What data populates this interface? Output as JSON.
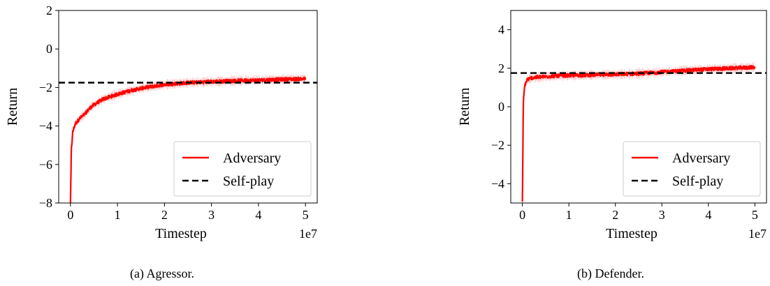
{
  "chart_data": [
    {
      "type": "line",
      "caption": "(a) Agressor.",
      "xlabel": "Timestep",
      "ylabel": "Return",
      "x_offset_label": "1e7",
      "xlim": [
        -0.25,
        5.25
      ],
      "ylim": [
        -8,
        2
      ],
      "xticks": [
        0,
        1,
        2,
        3,
        4,
        5
      ],
      "xtick_labels": [
        "0",
        "1",
        "2",
        "3",
        "4",
        "5"
      ],
      "yticks": [
        -8,
        -6,
        -4,
        -2,
        0,
        2
      ],
      "ytick_labels": [
        "−8",
        "−6",
        "−4",
        "−2",
        "0",
        "2"
      ],
      "legend_position": "lower-right",
      "series": [
        {
          "name": "Adversary",
          "color": "#ff0000",
          "style": "solid",
          "x": [
            0,
            0.02,
            0.05,
            0.1,
            0.2,
            0.3,
            0.4,
            0.5,
            0.7,
            1.0,
            1.3,
            1.6,
            2.0,
            2.5,
            3.0,
            3.5,
            4.0,
            4.5,
            5.0
          ],
          "y": [
            -8.0,
            -5.2,
            -4.3,
            -3.9,
            -3.6,
            -3.4,
            -3.1,
            -2.9,
            -2.6,
            -2.35,
            -2.15,
            -2.0,
            -1.85,
            -1.75,
            -1.7,
            -1.65,
            -1.62,
            -1.58,
            -1.55
          ]
        },
        {
          "name": "Self-play",
          "color": "#000000",
          "style": "dashed",
          "x": [
            -0.25,
            5.25
          ],
          "y": [
            -1.75,
            -1.75
          ]
        }
      ]
    },
    {
      "type": "line",
      "caption": "(b) Defender.",
      "xlabel": "Timestep",
      "ylabel": "Return",
      "x_offset_label": "1e7",
      "xlim": [
        -0.25,
        5.25
      ],
      "ylim": [
        -5,
        5
      ],
      "xticks": [
        0,
        1,
        2,
        3,
        4,
        5
      ],
      "xtick_labels": [
        "0",
        "1",
        "2",
        "3",
        "4",
        "5"
      ],
      "yticks": [
        -4,
        -2,
        0,
        2,
        4
      ],
      "ytick_labels": [
        "−4",
        "−2",
        "0",
        "2",
        "4"
      ],
      "legend_position": "lower-right",
      "series": [
        {
          "name": "Adversary",
          "color": "#ff0000",
          "style": "solid",
          "x": [
            0,
            0.02,
            0.05,
            0.1,
            0.2,
            0.4,
            0.7,
            1.0,
            1.5,
            2.0,
            2.5,
            3.0,
            3.5,
            4.0,
            4.5,
            5.0
          ],
          "y": [
            -5.0,
            0.2,
            1.1,
            1.4,
            1.5,
            1.55,
            1.6,
            1.62,
            1.65,
            1.68,
            1.72,
            1.8,
            1.88,
            1.95,
            2.0,
            2.05
          ]
        },
        {
          "name": "Self-play",
          "color": "#000000",
          "style": "dashed",
          "x": [
            -0.25,
            5.25
          ],
          "y": [
            1.75,
            1.75
          ]
        }
      ]
    }
  ]
}
